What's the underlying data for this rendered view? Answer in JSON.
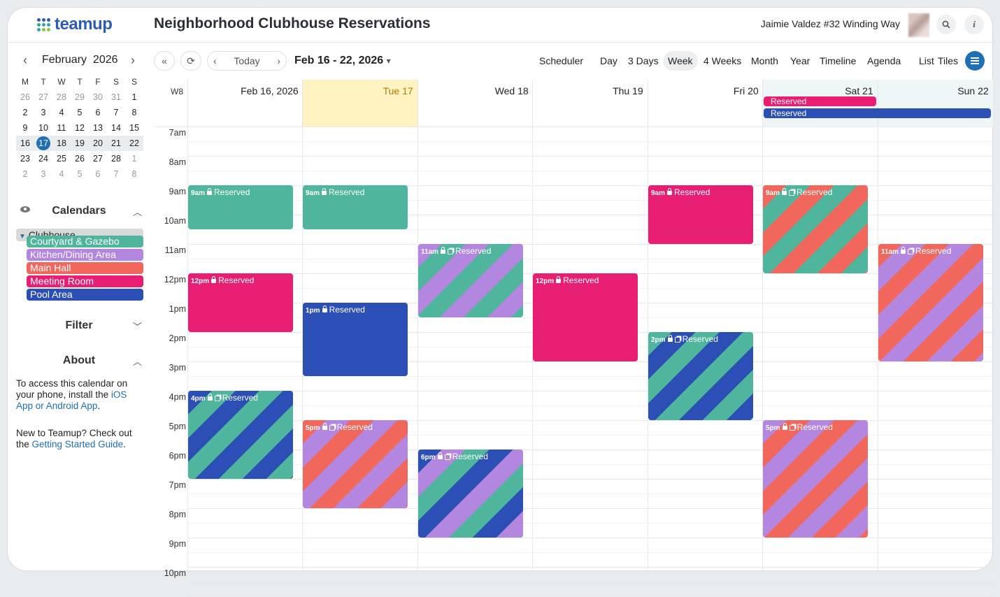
{
  "app": {
    "brand": "teamup",
    "title": "Neighborhood Clubhouse Reservations",
    "user": "Jaimie Valdez #32 Winding Way"
  },
  "minical": {
    "month": "February",
    "year": "2026",
    "weekdays": [
      "M",
      "T",
      "W",
      "T",
      "F",
      "S",
      "S"
    ],
    "weeks": [
      [
        "26",
        "27",
        "28",
        "29",
        "30",
        "31",
        "1"
      ],
      [
        "2",
        "3",
        "4",
        "5",
        "6",
        "7",
        "8"
      ],
      [
        "9",
        "10",
        "11",
        "12",
        "13",
        "14",
        "15"
      ],
      [
        "16",
        "17",
        "18",
        "19",
        "20",
        "21",
        "22"
      ],
      [
        "23",
        "24",
        "25",
        "26",
        "27",
        "28",
        "1"
      ],
      [
        "2",
        "3",
        "4",
        "5",
        "6",
        "7",
        "8"
      ]
    ],
    "today": "17"
  },
  "calendars": {
    "heading": "Calendars",
    "group": "Clubhouse",
    "items": [
      {
        "name": "Courtyard & Gazebo",
        "color": "#4fb59c"
      },
      {
        "name": "Kitchen/Dining Area",
        "color": "#b386e0"
      },
      {
        "name": "Main Hall",
        "color": "#f2675c"
      },
      {
        "name": "Meeting Room",
        "color": "#e81e73"
      },
      {
        "name": "Pool Area",
        "color": "#2b4fb5"
      }
    ]
  },
  "filter": {
    "heading": "Filter"
  },
  "about": {
    "heading": "About",
    "p1_text": "To access this calendar on your phone, install the ",
    "p1_link": "iOS App or Android App",
    "p1_end": ".",
    "p2_text": "New to Teamup? Check out the ",
    "p2_link": "Getting Started Guide",
    "p2_end": "."
  },
  "toolbar": {
    "today": "Today",
    "range": "Feb 16 - 22, 2026",
    "views": [
      "Scheduler",
      "Day",
      "3 Days",
      "Week",
      "4 Weeks",
      "Month",
      "Year",
      "Timeline",
      "Agenda",
      "List",
      "Tiles"
    ],
    "active_view": "Week"
  },
  "week": {
    "label": "W8",
    "days": [
      "Feb 16, 2026",
      "Tue 17",
      "Wed 18",
      "Thu 19",
      "Fri 20",
      "Sat 21",
      "Sun 22"
    ],
    "hours": [
      "7am",
      "8am",
      "9am",
      "10am",
      "11am",
      "12pm",
      "1pm",
      "2pm",
      "3pm",
      "4pm",
      "5pm",
      "6pm",
      "7pm",
      "8pm",
      "9pm",
      "10pm"
    ]
  },
  "all_day": [
    {
      "title": "Reserved",
      "day": 5,
      "span": 1,
      "color": "#e81e73"
    },
    {
      "title": "Reserved",
      "day": 5,
      "span": 2,
      "color": "#2b4fb5"
    }
  ],
  "events": [
    {
      "day": 0,
      "start": 9,
      "end": 10.5,
      "time": "9am",
      "title": "Reserved",
      "colors": [
        "#4fb59c"
      ],
      "multi": false
    },
    {
      "day": 0,
      "start": 12,
      "end": 14,
      "time": "12pm",
      "title": "Reserved",
      "colors": [
        "#e81e73"
      ],
      "multi": false
    },
    {
      "day": 0,
      "start": 16,
      "end": 19,
      "time": "4pm",
      "title": "Reserved",
      "colors": [
        "#2b4fb5",
        "#4fb59c"
      ],
      "multi": true
    },
    {
      "day": 1,
      "start": 9,
      "end": 10.5,
      "time": "9am",
      "title": "Reserved",
      "colors": [
        "#4fb59c"
      ],
      "multi": false
    },
    {
      "day": 1,
      "start": 13,
      "end": 15.5,
      "time": "1pm",
      "title": "Reserved",
      "colors": [
        "#2b4fb5"
      ],
      "multi": false
    },
    {
      "day": 1,
      "start": 17,
      "end": 20,
      "time": "5pm",
      "title": "Reserved",
      "colors": [
        "#f2675c",
        "#b386e0"
      ],
      "multi": true
    },
    {
      "day": 2,
      "start": 11,
      "end": 13.5,
      "time": "11am",
      "title": "Reserved",
      "colors": [
        "#b386e0",
        "#4fb59c"
      ],
      "multi": true
    },
    {
      "day": 2,
      "start": 18,
      "end": 21,
      "time": "6pm",
      "title": "Reserved",
      "colors": [
        "#2b4fb5",
        "#b386e0",
        "#4fb59c"
      ],
      "multi": true
    },
    {
      "day": 3,
      "start": 12,
      "end": 15,
      "time": "12pm",
      "title": "Reserved",
      "colors": [
        "#e81e73"
      ],
      "multi": false
    },
    {
      "day": 4,
      "start": 9,
      "end": 11,
      "time": "9am",
      "title": "Reserved",
      "colors": [
        "#e81e73"
      ],
      "multi": false
    },
    {
      "day": 4,
      "start": 14,
      "end": 17,
      "time": "2pm",
      "title": "Reserved",
      "colors": [
        "#4fb59c",
        "#2b4fb5"
      ],
      "multi": true
    },
    {
      "day": 5,
      "start": 9,
      "end": 12,
      "time": "9am",
      "title": "Reserved",
      "colors": [
        "#f2675c",
        "#4fb59c"
      ],
      "multi": true
    },
    {
      "day": 5,
      "start": 17,
      "end": 21,
      "time": "5pm",
      "title": "Reserved",
      "colors": [
        "#b386e0",
        "#f2675c"
      ],
      "multi": true
    },
    {
      "day": 6,
      "start": 11,
      "end": 15,
      "time": "11am",
      "title": "Reserved",
      "colors": [
        "#f2675c",
        "#b386e0"
      ],
      "multi": true
    }
  ]
}
